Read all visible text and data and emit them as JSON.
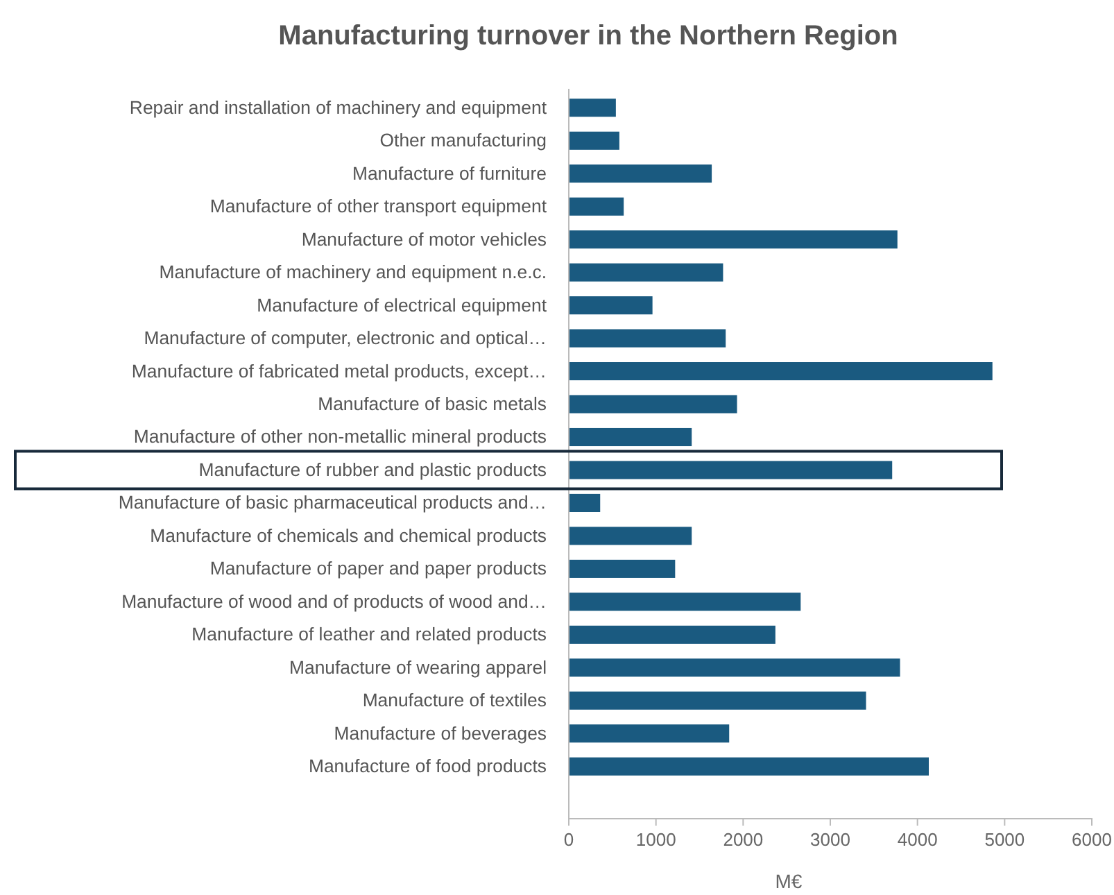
{
  "chart_data": {
    "type": "bar",
    "orientation": "horizontal",
    "title": "Manufacturing turnover in the Northern Region",
    "xlabel": "M€",
    "categories": [
      "Repair and installation of machinery and equipment",
      "Other manufacturing",
      "Manufacture of furniture",
      "Manufacture of other transport equipment",
      "Manufacture of motor vehicles",
      "Manufacture of machinery and equipment n.e.c.",
      "Manufacture of electrical equipment",
      "Manufacture of computer, electronic and optical…",
      "Manufacture of fabricated metal products, except…",
      "Manufacture of basic metals",
      "Manufacture of other non-metallic mineral products",
      "Manufacture of rubber and plastic products",
      "Manufacture of basic pharmaceutical products and…",
      "Manufacture of chemicals and chemical products",
      "Manufacture of paper and paper products",
      "Manufacture of wood and of products of wood and…",
      "Manufacture of leather and related products",
      "Manufacture of wearing apparel",
      "Manufacture of textiles",
      "Manufacture of beverages",
      "Manufacture of food products"
    ],
    "values": [
      540,
      580,
      1640,
      630,
      3770,
      1770,
      960,
      1800,
      4860,
      1930,
      1410,
      3710,
      360,
      1410,
      1220,
      2660,
      2370,
      3800,
      3410,
      1840,
      4130
    ],
    "color": "#1a5a80",
    "xlim": [
      0,
      6000
    ],
    "xticks": [
      0,
      1000,
      2000,
      3000,
      4000,
      5000,
      6000
    ],
    "grid": false
  }
}
